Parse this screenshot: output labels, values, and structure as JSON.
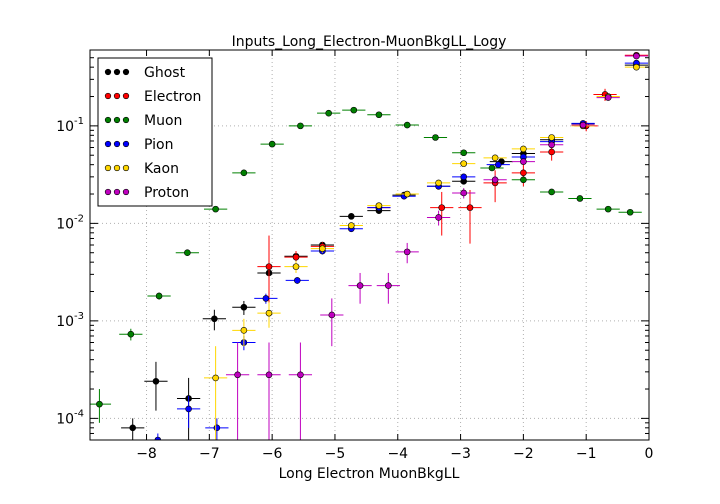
{
  "chart_data": {
    "type": "scatter",
    "title": "Inputs_Long_Electron-MuonBkgLL_Logy",
    "xlabel": "Long Electron MuonBkgLL",
    "ylabel": "",
    "xlim": [
      -8.9,
      0.0
    ],
    "ylim": [
      6e-05,
      0.6
    ],
    "y_scale": "log",
    "grid": true,
    "legend_position": "top-left",
    "x_ticks": [
      -8,
      -7,
      -6,
      -5,
      -4,
      -3,
      -2,
      -1,
      0
    ],
    "x_tick_labels": [
      "−8",
      "−7",
      "−6",
      "−5",
      "−4",
      "−3",
      "−2",
      "−1",
      "0"
    ],
    "y_major_ticks": [
      0.0001,
      0.001,
      0.01,
      0.1
    ],
    "y_tick_labels": [
      {
        "base": "10",
        "exp": "-4"
      },
      {
        "base": "10",
        "exp": "-3"
      },
      {
        "base": "10",
        "exp": "-2"
      },
      {
        "base": "10",
        "exp": "-1"
      }
    ],
    "bin_half_width": 0.185,
    "series": [
      {
        "name": "Ghost",
        "color": "#000000",
        "points": [
          {
            "x": -8.22,
            "y": 8e-05,
            "lo": 6e-05,
            "hi": 0.0001
          },
          {
            "x": -7.85,
            "y": 0.00024,
            "lo": 0.00012,
            "hi": 0.00038
          },
          {
            "x": -7.33,
            "y": 0.00016,
            "lo": 6e-05,
            "hi": 0.00026
          },
          {
            "x": -6.92,
            "y": 0.00105,
            "lo": 0.0008,
            "hi": 0.0013
          },
          {
            "x": -6.45,
            "y": 0.00138,
            "lo": 0.00115,
            "hi": 0.0016
          },
          {
            "x": -6.05,
            "y": 0.0031,
            "lo": 0.0027,
            "hi": 0.0035
          },
          {
            "x": -5.62,
            "y": 0.0046,
            "lo": 0.0042,
            "hi": 0.005
          },
          {
            "x": -5.2,
            "y": 0.006,
            "lo": 0.0056,
            "hi": 0.0064
          },
          {
            "x": -4.74,
            "y": 0.0118,
            "lo": 0.0112,
            "hi": 0.0124
          },
          {
            "x": -4.3,
            "y": 0.0135,
            "lo": 0.013,
            "hi": 0.014
          },
          {
            "x": -3.9,
            "y": 0.0195,
            "lo": 0.019,
            "hi": 0.0201
          },
          {
            "x": -3.35,
            "y": 0.024,
            "lo": 0.0234,
            "hi": 0.0246
          },
          {
            "x": -2.95,
            "y": 0.027,
            "lo": 0.0264,
            "hi": 0.0276
          },
          {
            "x": -2.35,
            "y": 0.043,
            "lo": 0.042,
            "hi": 0.044
          },
          {
            "x": -2.0,
            "y": 0.052,
            "lo": 0.051,
            "hi": 0.053
          },
          {
            "x": -1.55,
            "y": 0.072,
            "lo": 0.071,
            "hi": 0.073
          },
          {
            "x": -1.05,
            "y": 0.105,
            "lo": 0.103,
            "hi": 0.107
          },
          {
            "x": -0.2,
            "y": 0.42,
            "lo": 0.41,
            "hi": 0.43
          }
        ]
      },
      {
        "name": "Electron",
        "color": "#ff0000",
        "points": [
          {
            "x": -6.05,
            "y": 0.0036,
            "lo": 0.0012,
            "hi": 0.0075
          },
          {
            "x": -5.62,
            "y": 0.0045,
            "lo": 0.0038,
            "hi": 0.0052
          },
          {
            "x": -5.2,
            "y": 0.0058,
            "lo": 0.0052,
            "hi": 0.0064
          },
          {
            "x": -4.3,
            "y": 0.0145,
            "lo": 0.0138,
            "hi": 0.0152
          },
          {
            "x": -3.3,
            "y": 0.0145,
            "lo": 0.0075,
            "hi": 0.021
          },
          {
            "x": -2.85,
            "y": 0.0145,
            "lo": 0.0062,
            "hi": 0.022
          },
          {
            "x": -2.45,
            "y": 0.026,
            "lo": 0.0165,
            "hi": 0.035
          },
          {
            "x": -2.0,
            "y": 0.033,
            "lo": 0.024,
            "hi": 0.042
          },
          {
            "x": -1.55,
            "y": 0.054,
            "lo": 0.044,
            "hi": 0.064
          },
          {
            "x": -1.0,
            "y": 0.1,
            "lo": 0.088,
            "hi": 0.112
          },
          {
            "x": -0.7,
            "y": 0.21,
            "lo": 0.18,
            "hi": 0.24
          },
          {
            "x": -0.2,
            "y": 0.53,
            "lo": 0.5,
            "hi": 0.56
          }
        ]
      },
      {
        "name": "Muon",
        "color": "#008000",
        "points": [
          {
            "x": -8.75,
            "y": 0.00014,
            "lo": 9e-05,
            "hi": 0.0002
          },
          {
            "x": -8.25,
            "y": 0.00073,
            "lo": 0.00063,
            "hi": 0.00083
          },
          {
            "x": -7.8,
            "y": 0.0018,
            "lo": 0.00165,
            "hi": 0.00195
          },
          {
            "x": -7.35,
            "y": 0.005,
            "lo": 0.0048,
            "hi": 0.0052
          },
          {
            "x": -6.9,
            "y": 0.014,
            "lo": 0.0137,
            "hi": 0.0143
          },
          {
            "x": -6.45,
            "y": 0.033,
            "lo": 0.0325,
            "hi": 0.0335
          },
          {
            "x": -6.0,
            "y": 0.065,
            "lo": 0.0645,
            "hi": 0.0655
          },
          {
            "x": -5.55,
            "y": 0.1,
            "lo": 0.0995,
            "hi": 0.1005
          },
          {
            "x": -5.1,
            "y": 0.135,
            "lo": 0.134,
            "hi": 0.136
          },
          {
            "x": -4.7,
            "y": 0.145,
            "lo": 0.144,
            "hi": 0.146
          },
          {
            "x": -4.3,
            "y": 0.13,
            "lo": 0.129,
            "hi": 0.131
          },
          {
            "x": -3.85,
            "y": 0.102,
            "lo": 0.101,
            "hi": 0.103
          },
          {
            "x": -3.4,
            "y": 0.076,
            "lo": 0.075,
            "hi": 0.077
          },
          {
            "x": -2.95,
            "y": 0.053,
            "lo": 0.052,
            "hi": 0.054
          },
          {
            "x": -2.5,
            "y": 0.037,
            "lo": 0.036,
            "hi": 0.038
          },
          {
            "x": -2.0,
            "y": 0.028,
            "lo": 0.027,
            "hi": 0.029
          },
          {
            "x": -1.55,
            "y": 0.021,
            "lo": 0.0205,
            "hi": 0.0215
          },
          {
            "x": -1.1,
            "y": 0.018,
            "lo": 0.0175,
            "hi": 0.0185
          },
          {
            "x": -0.65,
            "y": 0.014,
            "lo": 0.0135,
            "hi": 0.0145
          },
          {
            "x": -0.3,
            "y": 0.013,
            "lo": 0.0125,
            "hi": 0.0135
          }
        ]
      },
      {
        "name": "Pion",
        "color": "#0000ff",
        "points": [
          {
            "x": -7.82,
            "y": 6e-05,
            "lo": 6e-05,
            "hi": 7e-05
          },
          {
            "x": -7.33,
            "y": 0.000125,
            "lo": 8e-05,
            "hi": 0.00017
          },
          {
            "x": -6.88,
            "y": 8e-05,
            "lo": 6e-05,
            "hi": 0.0001
          },
          {
            "x": -6.45,
            "y": 0.0006,
            "lo": 0.0005,
            "hi": 0.0007
          },
          {
            "x": -6.1,
            "y": 0.0017,
            "lo": 0.0015,
            "hi": 0.0019
          },
          {
            "x": -5.6,
            "y": 0.0026,
            "lo": 0.0024,
            "hi": 0.0028
          },
          {
            "x": -5.2,
            "y": 0.0052,
            "lo": 0.0048,
            "hi": 0.0056
          },
          {
            "x": -4.74,
            "y": 0.0088,
            "lo": 0.0084,
            "hi": 0.0092
          },
          {
            "x": -4.3,
            "y": 0.0145,
            "lo": 0.014,
            "hi": 0.015
          },
          {
            "x": -3.9,
            "y": 0.019,
            "lo": 0.0185,
            "hi": 0.0195
          },
          {
            "x": -3.35,
            "y": 0.024,
            "lo": 0.0234,
            "hi": 0.0246
          },
          {
            "x": -2.95,
            "y": 0.03,
            "lo": 0.0294,
            "hi": 0.0306
          },
          {
            "x": -2.4,
            "y": 0.04,
            "lo": 0.039,
            "hi": 0.041
          },
          {
            "x": -2.0,
            "y": 0.048,
            "lo": 0.047,
            "hi": 0.049
          },
          {
            "x": -1.55,
            "y": 0.069,
            "lo": 0.068,
            "hi": 0.07
          },
          {
            "x": -1.05,
            "y": 0.106,
            "lo": 0.104,
            "hi": 0.108
          },
          {
            "x": -0.2,
            "y": 0.44,
            "lo": 0.43,
            "hi": 0.45
          }
        ]
      },
      {
        "name": "Kaon",
        "color": "#ffd700",
        "points": [
          {
            "x": -6.9,
            "y": 0.00026,
            "lo": 6e-05,
            "hi": 0.00055
          },
          {
            "x": -6.45,
            "y": 0.0008,
            "lo": 0.00055,
            "hi": 0.00105
          },
          {
            "x": -6.05,
            "y": 0.0012,
            "lo": 0.00085,
            "hi": 0.00155
          },
          {
            "x": -5.62,
            "y": 0.0036,
            "lo": 0.0031,
            "hi": 0.0041
          },
          {
            "x": -5.2,
            "y": 0.0055,
            "lo": 0.005,
            "hi": 0.006
          },
          {
            "x": -4.74,
            "y": 0.0095,
            "lo": 0.009,
            "hi": 0.01
          },
          {
            "x": -4.3,
            "y": 0.0152,
            "lo": 0.0147,
            "hi": 0.0157
          },
          {
            "x": -3.85,
            "y": 0.02,
            "lo": 0.0195,
            "hi": 0.0205
          },
          {
            "x": -3.35,
            "y": 0.026,
            "lo": 0.0254,
            "hi": 0.0266
          },
          {
            "x": -2.95,
            "y": 0.041,
            "lo": 0.04,
            "hi": 0.042
          },
          {
            "x": -2.45,
            "y": 0.047,
            "lo": 0.046,
            "hi": 0.048
          },
          {
            "x": -2.0,
            "y": 0.058,
            "lo": 0.057,
            "hi": 0.059
          },
          {
            "x": -1.55,
            "y": 0.076,
            "lo": 0.075,
            "hi": 0.077
          },
          {
            "x": -1.05,
            "y": 0.1,
            "lo": 0.098,
            "hi": 0.102
          },
          {
            "x": -0.65,
            "y": 0.2,
            "lo": 0.19,
            "hi": 0.21
          },
          {
            "x": -0.2,
            "y": 0.4,
            "lo": 0.39,
            "hi": 0.41
          }
        ]
      },
      {
        "name": "Proton",
        "color": "#bf00bf",
        "points": [
          {
            "x": -6.55,
            "y": 0.00028,
            "lo": 6e-05,
            "hi": 0.0006
          },
          {
            "x": -6.05,
            "y": 0.00028,
            "lo": 6e-05,
            "hi": 0.0006
          },
          {
            "x": -5.55,
            "y": 0.00028,
            "lo": 6e-05,
            "hi": 0.0006
          },
          {
            "x": -5.05,
            "y": 0.00115,
            "lo": 0.00055,
            "hi": 0.0017
          },
          {
            "x": -4.6,
            "y": 0.0023,
            "lo": 0.0015,
            "hi": 0.0031
          },
          {
            "x": -4.15,
            "y": 0.0023,
            "lo": 0.0015,
            "hi": 0.0031
          },
          {
            "x": -3.85,
            "y": 0.0051,
            "lo": 0.0039,
            "hi": 0.0063
          },
          {
            "x": -3.35,
            "y": 0.0115,
            "lo": 0.0095,
            "hi": 0.0135
          },
          {
            "x": -2.95,
            "y": 0.0205,
            "lo": 0.018,
            "hi": 0.023
          },
          {
            "x": -2.45,
            "y": 0.028,
            "lo": 0.025,
            "hi": 0.031
          },
          {
            "x": -2.0,
            "y": 0.043,
            "lo": 0.04,
            "hi": 0.046
          },
          {
            "x": -1.55,
            "y": 0.064,
            "lo": 0.061,
            "hi": 0.067
          },
          {
            "x": -1.05,
            "y": 0.102,
            "lo": 0.1,
            "hi": 0.104
          },
          {
            "x": -0.65,
            "y": 0.195,
            "lo": 0.19,
            "hi": 0.2
          },
          {
            "x": -0.2,
            "y": 0.52,
            "lo": 0.51,
            "hi": 0.53
          }
        ]
      }
    ]
  }
}
